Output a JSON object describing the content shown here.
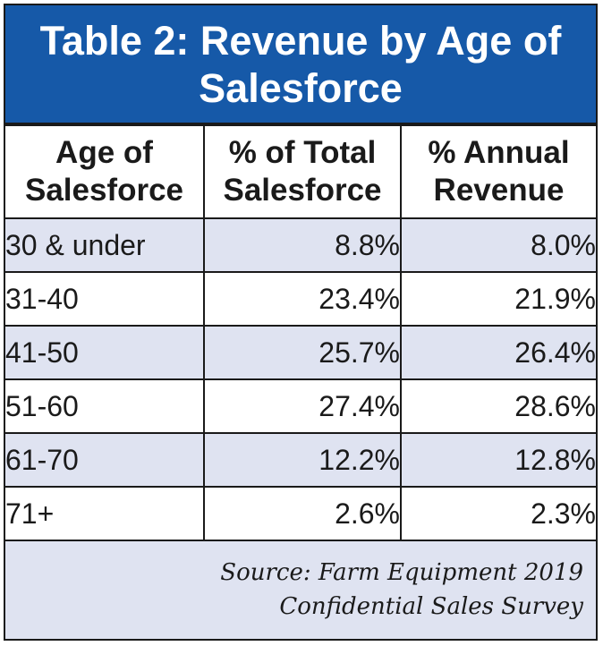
{
  "title": "Table 2: Revenue by Age of\nSalesforce",
  "colors": {
    "title_background": "#1659a8",
    "title_text": "#ffffff",
    "shaded_row": "#dfe3f1",
    "border": "#1a1a1a"
  },
  "table": {
    "headers": [
      "Age of\nSalesforce",
      "% of Total\nSalesforce",
      "% Annual\nRevenue"
    ],
    "rows": [
      [
        "30 & under",
        "8.8%",
        "8.0%"
      ],
      [
        "31-40",
        "23.4%",
        "21.9%"
      ],
      [
        "41-50",
        "25.7%",
        "26.4%"
      ],
      [
        "51-60",
        "27.4%",
        "28.6%"
      ],
      [
        "61-70",
        "12.2%",
        "12.8%"
      ],
      [
        "71+",
        "2.6%",
        "2.3%"
      ]
    ]
  },
  "source": "Source: Farm Equipment 2019\nConfidential Sales Survey"
}
